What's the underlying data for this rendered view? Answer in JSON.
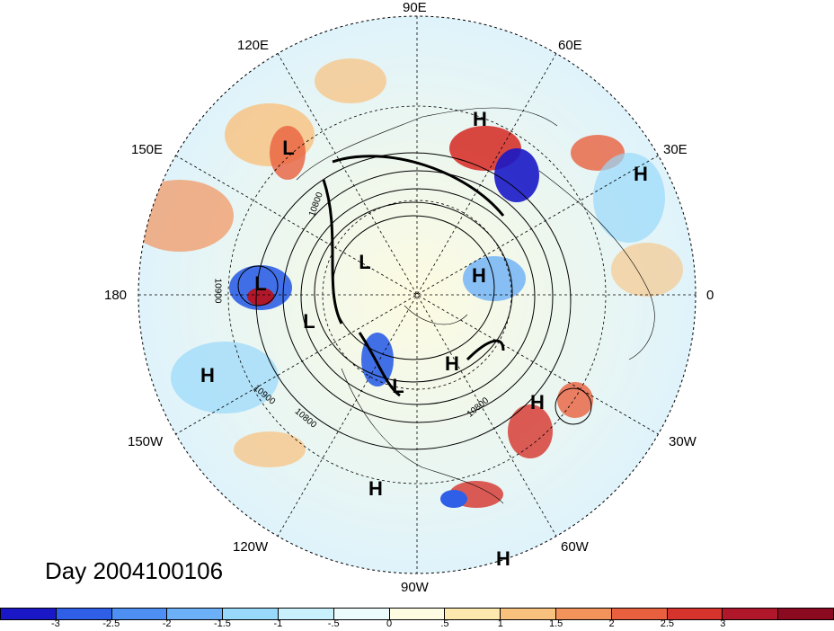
{
  "map": {
    "projection": "north-polar-stereographic",
    "longitude_labels": [
      "90E",
      "60E",
      "30E",
      "0",
      "30W",
      "60W",
      "90W",
      "120W",
      "150W",
      "180",
      "150E",
      "120E"
    ],
    "pressure_centers": [
      "H",
      "L",
      "H",
      "H",
      "L",
      "H",
      "L",
      "L",
      "L",
      "H",
      "H",
      "H",
      "H"
    ],
    "contour_labels": [
      "10800",
      "10900",
      "10900",
      "10800",
      "10800"
    ]
  },
  "title": {
    "day_label": "Day 2004100106"
  },
  "colorbar": {
    "colors": [
      "#1a18c6",
      "#2e5fe6",
      "#4d8ff2",
      "#6cb0f7",
      "#98d9fb",
      "#c9f1fd",
      "#ecfcfd",
      "#fdfbe1",
      "#fde8ae",
      "#f9c17e",
      "#f2935c",
      "#e8603d",
      "#d6332c",
      "#b0172a",
      "#8b0a1f"
    ],
    "tick_labels": [
      "-3",
      "-2.5",
      "-2",
      "-1.5",
      "-1",
      "-.5",
      "0",
      ".5",
      "1",
      "1.5",
      "2",
      "2.5",
      "3"
    ]
  }
}
